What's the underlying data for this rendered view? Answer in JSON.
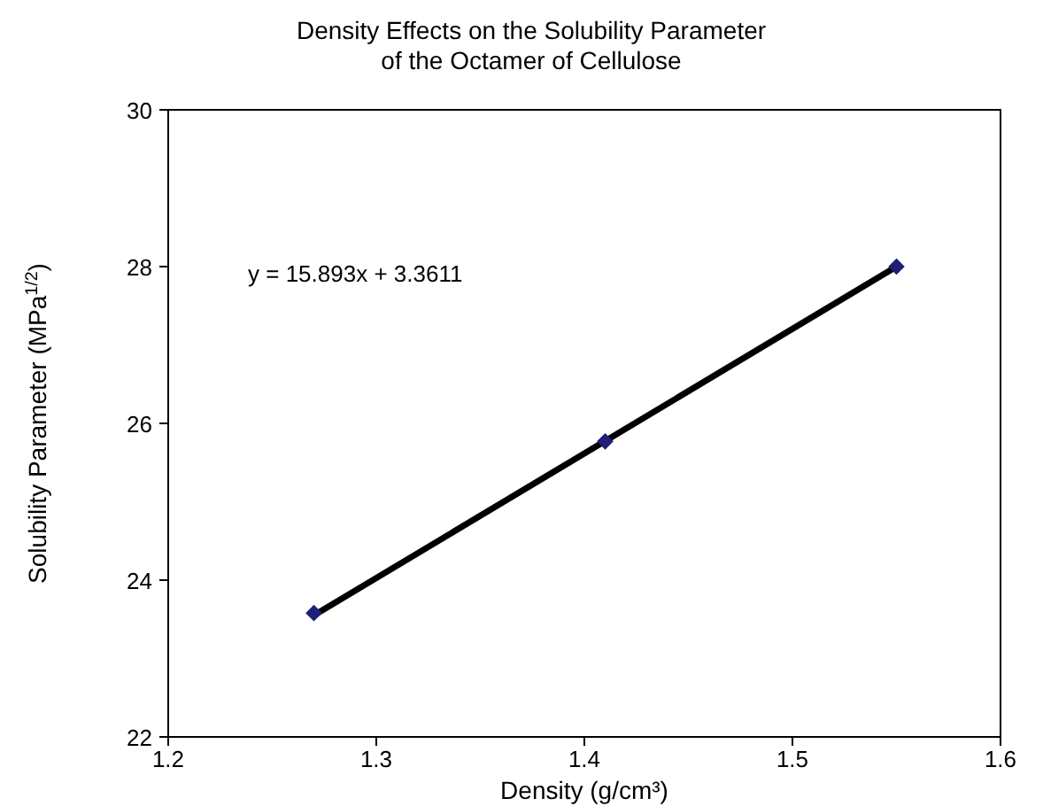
{
  "chart_data": {
    "type": "scatter",
    "title": "Density Effects on the Solubility Parameter\nof the Octamer of Cellulose",
    "xlabel": "Density (g/cm³)",
    "ylabel": "Solubility Parameter (MPa$^{1/2}$)",
    "annotations": [
      "y = 15.893x + 3.3611"
    ],
    "xlim": [
      1.2,
      1.6
    ],
    "xticks": [
      {
        "value": 1.2,
        "label": "1.2"
      },
      1.3,
      1.4,
      1.5,
      {
        "value": 1.6,
        "label": "1.6"
      }
    ],
    "ylim": [
      22,
      30
    ],
    "yticks": [
      22,
      24,
      26,
      28,
      30
    ],
    "grid": false,
    "series": [
      {
        "type": "line",
        "color": "#000000",
        "x": [
          1.27,
          1.55
        ],
        "values": [
          23.55,
          28.0
        ],
        "marker": "none",
        "line_style": "solid"
      },
      {
        "color": "#1f1f78",
        "x": [
          1.27,
          1.41,
          1.55
        ],
        "values": [
          23.58,
          25.77,
          28.0
        ],
        "marker": "diamond"
      }
    ]
  }
}
